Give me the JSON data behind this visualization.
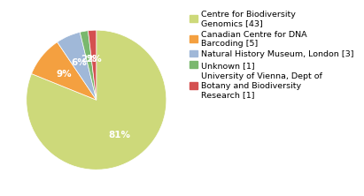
{
  "labels": [
    "Centre for Biodiversity\nGenomics [43]",
    "Canadian Centre for DNA\nBarcoding [5]",
    "Natural History Museum, London [3]",
    "Unknown [1]",
    "University of Vienna, Dept of\nBotany and Biodiversity\nResearch [1]"
  ],
  "values": [
    43,
    5,
    3,
    1,
    1
  ],
  "colors": [
    "#cdd97a",
    "#f4a040",
    "#a0b8d8",
    "#7ab86e",
    "#d45050"
  ],
  "background_color": "#ffffff",
  "text_color": "#ffffff",
  "startangle": 90,
  "legend_fontsize": 6.8,
  "autopct_fontsize": 7.5
}
